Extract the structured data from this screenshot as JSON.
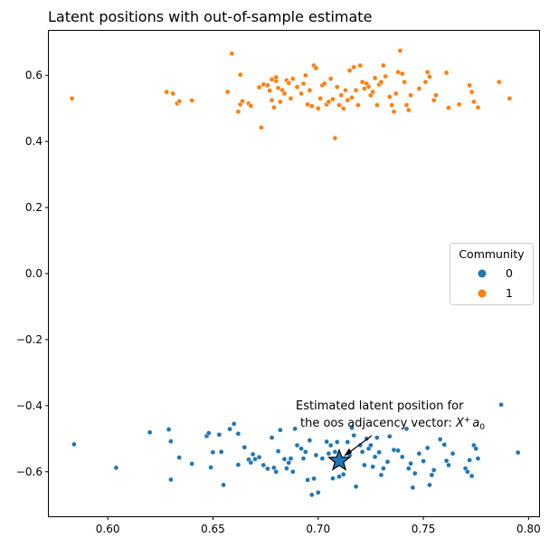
{
  "chart_data": {
    "type": "scatter",
    "title": "Latent positions with out-of-sample estimate",
    "xlabel": "",
    "ylabel": "",
    "xlim": [
      0.572,
      0.805
    ],
    "ylim": [
      -0.735,
      0.735
    ],
    "xticks": [
      0.6,
      0.65,
      0.7,
      0.75,
      0.8
    ],
    "xtick_labels": [
      "0.60",
      "0.65",
      "0.70",
      "0.75",
      "0.80"
    ],
    "yticks": [
      -0.6,
      -0.4,
      -0.2,
      0.0,
      0.2,
      0.4,
      0.6
    ],
    "ytick_labels": [
      "−0.6",
      "−0.4",
      "−0.2",
      "0.0",
      "0.2",
      "0.4",
      "0.6"
    ],
    "grid": false,
    "legend": {
      "title": "Community",
      "placement": "center-right",
      "entries": [
        {
          "label": "0",
          "color": "#1f77b4"
        },
        {
          "label": "1",
          "color": "#ff7f0e"
        }
      ]
    },
    "series": [
      {
        "name": "0",
        "color": "#1f77b4",
        "points": [
          [
            0.584,
            -0.517
          ],
          [
            0.604,
            -0.588
          ],
          [
            0.62,
            -0.481
          ],
          [
            0.629,
            -0.472
          ],
          [
            0.63,
            -0.508
          ],
          [
            0.63,
            -0.624
          ],
          [
            0.634,
            -0.557
          ],
          [
            0.64,
            -0.576
          ],
          [
            0.647,
            -0.492
          ],
          [
            0.648,
            -0.483
          ],
          [
            0.649,
            -0.587
          ],
          [
            0.65,
            -0.541
          ],
          [
            0.653,
            -0.488
          ],
          [
            0.654,
            -0.54
          ],
          [
            0.655,
            -0.64
          ],
          [
            0.658,
            -0.471
          ],
          [
            0.66,
            -0.455
          ],
          [
            0.662,
            -0.485
          ],
          [
            0.662,
            -0.579
          ],
          [
            0.665,
            -0.526
          ],
          [
            0.667,
            -0.563
          ],
          [
            0.668,
            -0.572
          ],
          [
            0.669,
            -0.547
          ],
          [
            0.67,
            -0.562
          ],
          [
            0.672,
            -0.556
          ],
          [
            0.674,
            -0.58
          ],
          [
            0.676,
            -0.591
          ],
          [
            0.678,
            -0.497
          ],
          [
            0.679,
            -0.588
          ],
          [
            0.68,
            -0.6
          ],
          [
            0.681,
            -0.538
          ],
          [
            0.682,
            -0.474
          ],
          [
            0.684,
            -0.562
          ],
          [
            0.685,
            -0.59
          ],
          [
            0.686,
            -0.573
          ],
          [
            0.687,
            -0.56
          ],
          [
            0.688,
            -0.6
          ],
          [
            0.689,
            -0.47
          ],
          [
            0.69,
            -0.52
          ],
          [
            0.692,
            -0.53
          ],
          [
            0.693,
            -0.56
          ],
          [
            0.694,
            -0.54
          ],
          [
            0.695,
            -0.625
          ],
          [
            0.696,
            -0.505
          ],
          [
            0.697,
            -0.67
          ],
          [
            0.698,
            -0.621
          ],
          [
            0.699,
            -0.55
          ],
          [
            0.7,
            -0.663
          ],
          [
            0.702,
            -0.56
          ],
          [
            0.704,
            -0.509
          ],
          [
            0.705,
            -0.545
          ],
          [
            0.706,
            -0.52
          ],
          [
            0.707,
            -0.62
          ],
          [
            0.708,
            -0.54
          ],
          [
            0.709,
            -0.51
          ],
          [
            0.71,
            -0.615
          ],
          [
            0.711,
            -0.56
          ],
          [
            0.712,
            -0.608
          ],
          [
            0.714,
            -0.51
          ],
          [
            0.715,
            -0.55
          ],
          [
            0.716,
            -0.467
          ],
          [
            0.717,
            -0.49
          ],
          [
            0.718,
            -0.645
          ],
          [
            0.72,
            -0.52
          ],
          [
            0.721,
            -0.54
          ],
          [
            0.722,
            -0.58
          ],
          [
            0.723,
            -0.5
          ],
          [
            0.724,
            -0.53
          ],
          [
            0.725,
            -0.52
          ],
          [
            0.726,
            -0.585
          ],
          [
            0.727,
            -0.555
          ],
          [
            0.728,
            -0.497
          ],
          [
            0.729,
            -0.541
          ],
          [
            0.73,
            -0.61
          ],
          [
            0.731,
            -0.59
          ],
          [
            0.733,
            -0.57
          ],
          [
            0.734,
            -0.493
          ],
          [
            0.736,
            -0.534
          ],
          [
            0.738,
            -0.536
          ],
          [
            0.74,
            -0.555
          ],
          [
            0.742,
            -0.47
          ],
          [
            0.743,
            -0.59
          ],
          [
            0.744,
            -0.575
          ],
          [
            0.745,
            -0.648
          ],
          [
            0.746,
            -0.605
          ],
          [
            0.748,
            -0.545
          ],
          [
            0.75,
            -0.568
          ],
          [
            0.752,
            -0.528
          ],
          [
            0.753,
            -0.64
          ],
          [
            0.754,
            -0.61
          ],
          [
            0.755,
            -0.595
          ],
          [
            0.758,
            -0.502
          ],
          [
            0.76,
            -0.518
          ],
          [
            0.761,
            -0.567
          ],
          [
            0.762,
            -0.58
          ],
          [
            0.764,
            -0.545
          ],
          [
            0.77,
            -0.59
          ],
          [
            0.771,
            -0.6
          ],
          [
            0.772,
            -0.565
          ],
          [
            0.773,
            -0.613
          ],
          [
            0.774,
            -0.52
          ],
          [
            0.775,
            -0.53
          ],
          [
            0.776,
            -0.56
          ],
          [
            0.787,
            -0.397
          ],
          [
            0.795,
            -0.542
          ]
        ]
      },
      {
        "name": "1",
        "color": "#ff7f0e",
        "points": [
          [
            0.583,
            0.53
          ],
          [
            0.628,
            0.55
          ],
          [
            0.631,
            0.545
          ],
          [
            0.633,
            0.515
          ],
          [
            0.634,
            0.522
          ],
          [
            0.64,
            0.524
          ],
          [
            0.657,
            0.55
          ],
          [
            0.659,
            0.666
          ],
          [
            0.662,
            0.49
          ],
          [
            0.663,
            0.512
          ],
          [
            0.663,
            0.602
          ],
          [
            0.664,
            0.522
          ],
          [
            0.667,
            0.515
          ],
          [
            0.668,
            0.508
          ],
          [
            0.672,
            0.564
          ],
          [
            0.673,
            0.442
          ],
          [
            0.674,
            0.573
          ],
          [
            0.676,
            0.57
          ],
          [
            0.677,
            0.554
          ],
          [
            0.678,
            0.588
          ],
          [
            0.678,
            0.525
          ],
          [
            0.679,
            0.503
          ],
          [
            0.68,
            0.583
          ],
          [
            0.68,
            0.594
          ],
          [
            0.681,
            0.562
          ],
          [
            0.682,
            0.52
          ],
          [
            0.683,
            0.555
          ],
          [
            0.684,
            0.545
          ],
          [
            0.685,
            0.585
          ],
          [
            0.686,
            0.577
          ],
          [
            0.687,
            0.53
          ],
          [
            0.688,
            0.59
          ],
          [
            0.69,
            0.565
          ],
          [
            0.692,
            0.545
          ],
          [
            0.693,
            0.575
          ],
          [
            0.694,
            0.6
          ],
          [
            0.695,
            0.512
          ],
          [
            0.696,
            0.555
          ],
          [
            0.697,
            0.507
          ],
          [
            0.698,
            0.63
          ],
          [
            0.699,
            0.622
          ],
          [
            0.7,
            0.5
          ],
          [
            0.701,
            0.53
          ],
          [
            0.702,
            0.57
          ],
          [
            0.703,
            0.575
          ],
          [
            0.704,
            0.512
          ],
          [
            0.705,
            0.52
          ],
          [
            0.706,
            0.59
          ],
          [
            0.707,
            0.528
          ],
          [
            0.708,
            0.41
          ],
          [
            0.709,
            0.565
          ],
          [
            0.71,
            0.51
          ],
          [
            0.711,
            0.54
          ],
          [
            0.712,
            0.5
          ],
          [
            0.713,
            0.555
          ],
          [
            0.714,
            0.525
          ],
          [
            0.715,
            0.615
          ],
          [
            0.716,
            0.533
          ],
          [
            0.717,
            0.625
          ],
          [
            0.718,
            0.555
          ],
          [
            0.719,
            0.51
          ],
          [
            0.72,
            0.63
          ],
          [
            0.721,
            0.58
          ],
          [
            0.722,
            0.56
          ],
          [
            0.723,
            0.575
          ],
          [
            0.724,
            0.566
          ],
          [
            0.725,
            0.54
          ],
          [
            0.726,
            0.55
          ],
          [
            0.727,
            0.592
          ],
          [
            0.728,
            0.51
          ],
          [
            0.729,
            0.572
          ],
          [
            0.73,
            0.58
          ],
          [
            0.731,
            0.63
          ],
          [
            0.732,
            0.597
          ],
          [
            0.734,
            0.535
          ],
          [
            0.735,
            0.51
          ],
          [
            0.736,
            0.49
          ],
          [
            0.737,
            0.545
          ],
          [
            0.738,
            0.61
          ],
          [
            0.739,
            0.675
          ],
          [
            0.74,
            0.605
          ],
          [
            0.741,
            0.58
          ],
          [
            0.742,
            0.51
          ],
          [
            0.743,
            0.495
          ],
          [
            0.744,
            0.54
          ],
          [
            0.748,
            0.56
          ],
          [
            0.751,
            0.58
          ],
          [
            0.752,
            0.61
          ],
          [
            0.753,
            0.596
          ],
          [
            0.755,
            0.525
          ],
          [
            0.756,
            0.54
          ],
          [
            0.761,
            0.608
          ],
          [
            0.762,
            0.502
          ],
          [
            0.767,
            0.512
          ],
          [
            0.772,
            0.57
          ],
          [
            0.773,
            0.55
          ],
          [
            0.774,
            0.52
          ],
          [
            0.776,
            0.503
          ],
          [
            0.786,
            0.58
          ],
          [
            0.791,
            0.53
          ]
        ]
      }
    ],
    "estimate": {
      "x": 0.71,
      "y": -0.567,
      "color": "#1f77b4",
      "marker": "star"
    },
    "annotation": {
      "line1": "Estimated latent position for",
      "line2_prefix": "the oos adjacency vector: ",
      "math_X": "X",
      "math_sup": "+",
      "math_a": "a",
      "math_sub": "0"
    }
  }
}
